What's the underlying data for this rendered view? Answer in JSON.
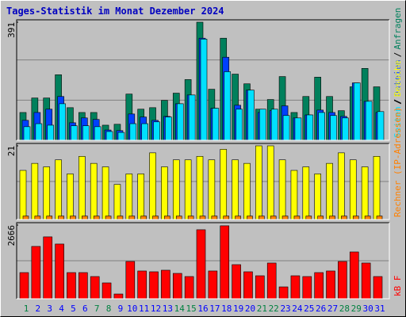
{
  "chart_data": [
    {
      "type": "bar",
      "title": "Tages-Statistik im Monat Dezember 2024",
      "ylim": [
        0,
        391
      ],
      "yticks": [
        391
      ],
      "legend_separator": "/",
      "series": [
        {
          "name": "Anfragen",
          "color": "#00805c",
          "values": [
            92,
            140,
            140,
            217,
            108,
            92,
            92,
            50,
            53,
            153,
            103,
            108,
            132,
            156,
            201,
            391,
            169,
            338,
            219,
            187,
            103,
            135,
            211,
            92,
            145,
            209,
            145,
            98,
            177,
            238,
            177
          ]
        },
        {
          "name": "Dateien",
          "color": "#0040ff",
          "values": [
            66,
            92,
            103,
            145,
            58,
            74,
            69,
            34,
            32,
            87,
            77,
            66,
            79,
            121,
            150,
            338,
            106,
            275,
            116,
            166,
            92,
            98,
            114,
            74,
            84,
            100,
            92,
            79,
            190,
            129,
            92
          ]
        },
        {
          "name": "Seiten",
          "color": "#00e0ff",
          "values": [
            45,
            55,
            50,
            121,
            48,
            48,
            45,
            29,
            26,
            55,
            55,
            61,
            77,
            121,
            150,
            335,
            106,
            227,
            103,
            166,
            103,
            103,
            82,
            74,
            84,
            92,
            82,
            74,
            190,
            129,
            95
          ]
        }
      ]
    },
    {
      "type": "bar",
      "ylim": [
        0,
        21
      ],
      "yticks": [
        21
      ],
      "legend_separator": "/",
      "series": [
        {
          "name": "Besuche",
          "color": "#ffff00",
          "values": [
            14,
            16,
            15,
            17,
            13,
            18,
            16,
            15,
            10,
            13,
            13,
            19,
            15,
            17,
            17,
            18,
            17,
            20,
            17,
            16,
            21,
            21,
            17,
            14,
            15,
            13,
            16,
            19,
            17,
            15,
            18
          ]
        },
        {
          "name": "Rechner (IP-Adressen)",
          "color": "#ff8000",
          "values": [
            1,
            1,
            1,
            1,
            1,
            1,
            1,
            1,
            1,
            1,
            1,
            1,
            1,
            1,
            1,
            1,
            1,
            1,
            1,
            1,
            1,
            1,
            1,
            1,
            1,
            1,
            1,
            1,
            1,
            1,
            1
          ]
        }
      ]
    },
    {
      "type": "bar",
      "ylim": [
        0,
        2666
      ],
      "yticks": [
        2666
      ],
      "series": [
        {
          "name": "kB F",
          "color": "#ff0000",
          "values": [
            947,
            1894,
            2239,
            1980,
            947,
            947,
            804,
            574,
            172,
            1349,
            1005,
            976,
            1033,
            918,
            804,
            2497,
            1005,
            2640,
            1234,
            976,
            832,
            1292,
            430,
            832,
            804,
            947,
            1005,
            1349,
            1693,
            1292,
            804
          ]
        }
      ],
      "categories": [
        "1",
        "2",
        "3",
        "4",
        "5",
        "6",
        "7",
        "8",
        "9",
        "10",
        "11",
        "12",
        "13",
        "14",
        "15",
        "16",
        "17",
        "18",
        "19",
        "20",
        "21",
        "22",
        "23",
        "24",
        "25",
        "26",
        "27",
        "28",
        "29",
        "30",
        "31"
      ],
      "category_colors": [
        "#008040",
        "#0000ff",
        "#0000ff",
        "#0000ff",
        "#0000ff",
        "#0000ff",
        "#008040",
        "#008040",
        "#0000ff",
        "#0000ff",
        "#0000ff",
        "#0000ff",
        "#0000ff",
        "#008040",
        "#008040",
        "#0000ff",
        "#0000ff",
        "#0000ff",
        "#0000ff",
        "#0000ff",
        "#008040",
        "#008040",
        "#0000ff",
        "#0000ff",
        "#0000ff",
        "#0000ff",
        "#0000ff",
        "#008040",
        "#008040",
        "#0000ff",
        "#0000ff"
      ]
    }
  ]
}
